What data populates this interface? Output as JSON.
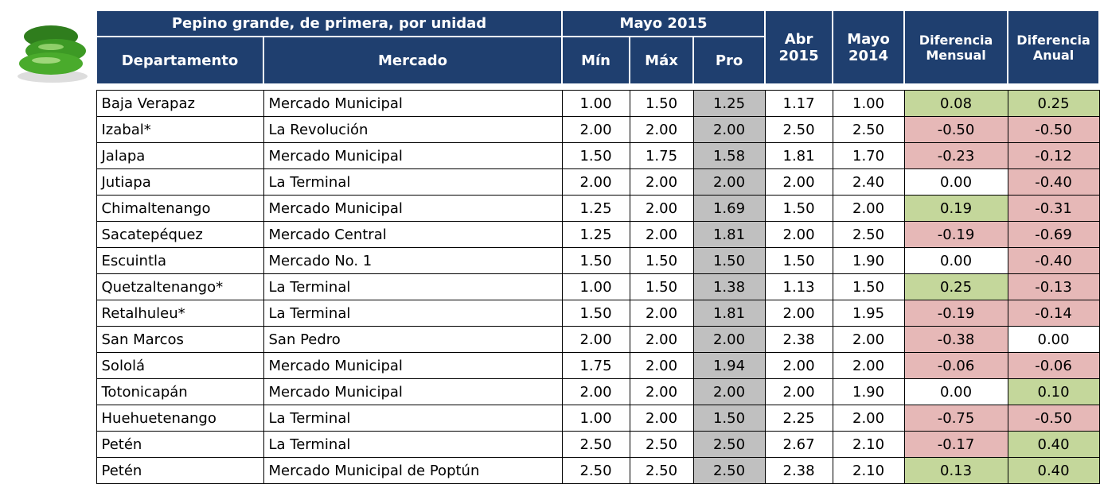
{
  "header": {
    "title": "Pepino grande, de primera, por unidad",
    "group": "Mayo 2015"
  },
  "table": {
    "columns": [
      "Departamento",
      "Mercado",
      "Mín",
      "Máx",
      "Pro",
      "Abr 2015",
      "Mayo 2014",
      "Diferencia Mensual",
      "Diferencia Anual"
    ],
    "rows": [
      [
        "Baja Verapaz",
        "Mercado Municipal",
        "1.00",
        "1.50",
        "1.25",
        "1.17",
        "1.00",
        "0.08",
        "0.25"
      ],
      [
        "Izabal*",
        "La Revolución",
        "2.00",
        "2.00",
        "2.00",
        "2.50",
        "2.50",
        "-0.50",
        "-0.50"
      ],
      [
        "Jalapa",
        "Mercado Municipal",
        "1.50",
        "1.75",
        "1.58",
        "1.81",
        "1.70",
        "-0.23",
        "-0.12"
      ],
      [
        "Jutiapa",
        "La Terminal",
        "2.00",
        "2.00",
        "2.00",
        "2.00",
        "2.40",
        "0.00",
        "-0.40"
      ],
      [
        "Chimaltenango",
        "Mercado Municipal",
        "1.25",
        "2.00",
        "1.69",
        "1.50",
        "2.00",
        "0.19",
        "-0.31"
      ],
      [
        "Sacatepéquez",
        "Mercado Central",
        "1.25",
        "2.00",
        "1.81",
        "2.00",
        "2.50",
        "-0.19",
        "-0.69"
      ],
      [
        "Escuintla",
        "Mercado No. 1",
        "1.50",
        "1.50",
        "1.50",
        "1.50",
        "1.90",
        "0.00",
        "-0.40"
      ],
      [
        "Quetzaltenango*",
        "La Terminal",
        "1.00",
        "1.50",
        "1.38",
        "1.13",
        "1.50",
        "0.25",
        "-0.13"
      ],
      [
        "Retalhuleu*",
        "La Terminal",
        "1.50",
        "2.00",
        "1.81",
        "2.00",
        "1.95",
        "-0.19",
        "-0.14"
      ],
      [
        "San Marcos",
        "San Pedro",
        "2.00",
        "2.00",
        "2.00",
        "2.38",
        "2.00",
        "-0.38",
        "0.00"
      ],
      [
        "Sololá",
        "Mercado Municipal",
        "1.75",
        "2.00",
        "1.94",
        "2.00",
        "2.00",
        "-0.06",
        "-0.06"
      ],
      [
        "Totonicapán",
        "Mercado Municipal",
        "2.00",
        "2.00",
        "2.00",
        "2.00",
        "1.90",
        "0.00",
        "0.10"
      ],
      [
        "Huehuetenango",
        "La Terminal",
        "1.00",
        "2.00",
        "1.50",
        "2.25",
        "2.00",
        "-0.75",
        "-0.50"
      ],
      [
        "Petén",
        "La Terminal",
        "2.50",
        "2.50",
        "2.50",
        "2.67",
        "2.10",
        "-0.17",
        "0.40"
      ],
      [
        "Petén",
        "Mercado Municipal de Poptún",
        "2.50",
        "2.50",
        "2.50",
        "2.38",
        "2.10",
        "0.13",
        "0.40"
      ]
    ]
  }
}
